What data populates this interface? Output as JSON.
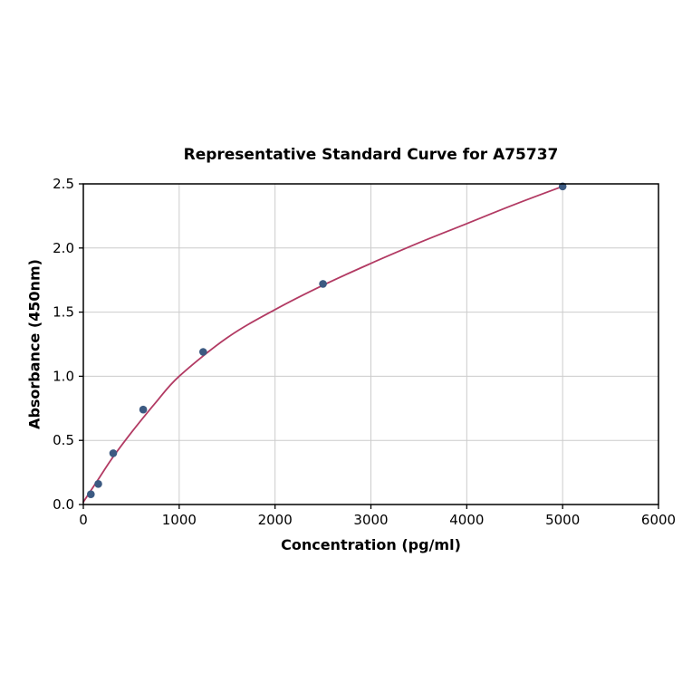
{
  "page": {
    "background": "#ffffff"
  },
  "chart_data": {
    "type": "scatter",
    "title": "Representative Standard Curve for A75737",
    "xlabel": "Concentration (pg/ml)",
    "ylabel": "Absorbance (450nm)",
    "xlim": [
      0,
      6000
    ],
    "ylim": [
      0.0,
      2.5
    ],
    "xticks": [
      0,
      1000,
      2000,
      3000,
      4000,
      5000,
      6000
    ],
    "yticks": [
      0.0,
      0.5,
      1.0,
      1.5,
      2.0,
      2.5
    ],
    "grid": true,
    "legend_position": "none",
    "colors": {
      "point": "#3c5a82",
      "curve": "#b23a63",
      "grid": "#cccccc",
      "border": "#000000"
    },
    "marker_radius": 4.3,
    "curve_width": 1.8,
    "series": [
      {
        "name": "standard-points",
        "type": "scatter",
        "x": [
          78,
          156,
          312,
          625,
          1250,
          2500,
          5000
        ],
        "y": [
          0.08,
          0.16,
          0.4,
          0.74,
          1.19,
          1.72,
          2.48
        ]
      },
      {
        "name": "fitted-curve",
        "type": "line",
        "x": [
          0,
          150,
          300,
          500,
          750,
          1000,
          1500,
          2000,
          2500,
          3000,
          3500,
          4000,
          4500,
          5000
        ],
        "y": [
          0.02,
          0.19,
          0.36,
          0.56,
          0.79,
          1.0,
          1.3,
          1.52,
          1.71,
          1.88,
          2.04,
          2.19,
          2.34,
          2.48
        ]
      }
    ]
  }
}
